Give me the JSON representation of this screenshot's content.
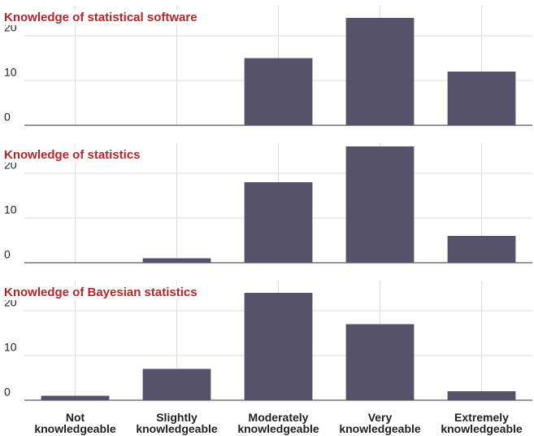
{
  "chart_data": [
    {
      "type": "bar",
      "title": "Knowledge of statistical software",
      "categories": [
        "Not knowledgeable",
        "Slightly knowledgeable",
        "Moderately knowledgeable",
        "Very knowledgeable",
        "Extremely knowledgeable"
      ],
      "values": [
        0,
        0,
        15,
        24,
        12
      ],
      "color": "#55526a",
      "title_color": "#b5262b",
      "ylim": [
        0,
        26
      ],
      "yticks": [
        0,
        10,
        20
      ],
      "grid": true
    },
    {
      "type": "bar",
      "title": "Knowledge of statistics",
      "categories": [
        "Not knowledgeable",
        "Slightly knowledgeable",
        "Moderately knowledgeable",
        "Very knowledgeable",
        "Extremely knowledgeable"
      ],
      "values": [
        0,
        1,
        18,
        26,
        6
      ],
      "color": "#55526a",
      "title_color": "#b5262b",
      "ylim": [
        0,
        26
      ],
      "yticks": [
        0,
        10,
        20
      ],
      "grid": true
    },
    {
      "type": "bar",
      "title": "Knowledge of Bayesian statistics",
      "categories": [
        "Not knowledgeable",
        "Slightly knowledgeable",
        "Moderately knowledgeable",
        "Very knowledgeable",
        "Extremely knowledgeable"
      ],
      "values": [
        1,
        7,
        24,
        17,
        2
      ],
      "color": "#55526a",
      "title_color": "#b5262b",
      "ylim": [
        0,
        26
      ],
      "yticks": [
        0,
        10,
        20
      ],
      "grid": true
    }
  ]
}
